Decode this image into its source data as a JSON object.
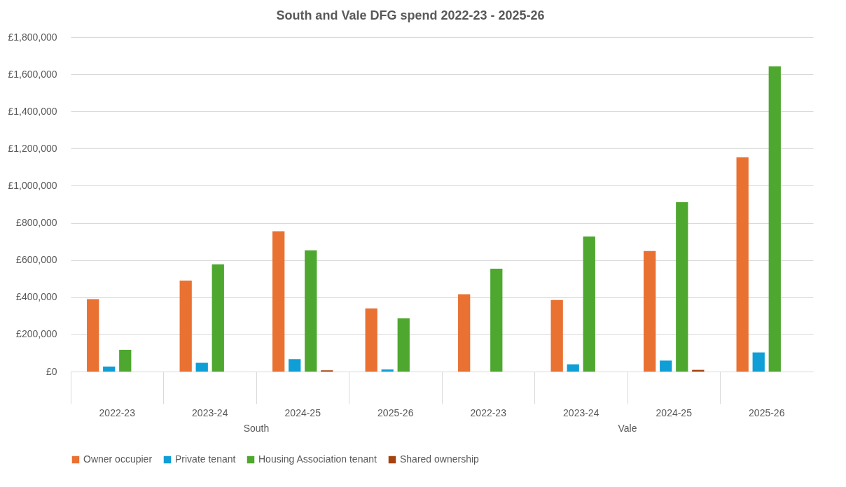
{
  "chart_data": {
    "type": "bar",
    "title": "South and Vale DFG spend 2022-23 - 2025-26",
    "categories": [
      "2022-23",
      "2023-24",
      "2024-25",
      "2025-26",
      "2022-23",
      "2023-24",
      "2024-25",
      "2025-26"
    ],
    "annotations": [
      "South",
      "Vale"
    ],
    "series": [
      {
        "name": "Owner occupier",
        "color": "#e97132",
        "values": [
          390000,
          490000,
          755000,
          340000,
          416000,
          385000,
          649000,
          1153000
        ]
      },
      {
        "name": "Private tenant",
        "color": "#0f9ed5",
        "values": [
          27000,
          47000,
          67000,
          11000,
          0,
          39000,
          59000,
          103000
        ]
      },
      {
        "name": "Housing Association tenant",
        "color": "#4ea72e",
        "values": [
          117000,
          577000,
          652000,
          286000,
          554000,
          727000,
          911000,
          1643000
        ]
      },
      {
        "name": "Shared ownership",
        "color": "#a5420f",
        "values": [
          0,
          0,
          7000,
          0,
          0,
          0,
          9000,
          0
        ]
      }
    ],
    "ylim": [
      0,
      1800000
    ],
    "yticks": [
      {
        "value": 0,
        "label": "£0"
      },
      {
        "value": 200000,
        "label": "£200,000"
      },
      {
        "value": 400000,
        "label": "£400,000"
      },
      {
        "value": 600000,
        "label": "£600,000"
      },
      {
        "value": 800000,
        "label": "£800,000"
      },
      {
        "value": 1000000,
        "label": "£1,000,000"
      },
      {
        "value": 1200000,
        "label": "£1,200,000"
      },
      {
        "value": 1400000,
        "label": "£1,400,000"
      },
      {
        "value": 1600000,
        "label": "£1,600,000"
      },
      {
        "value": 1800000,
        "label": "£1,800,000"
      }
    ],
    "grid": "y",
    "legend": "bottom"
  }
}
